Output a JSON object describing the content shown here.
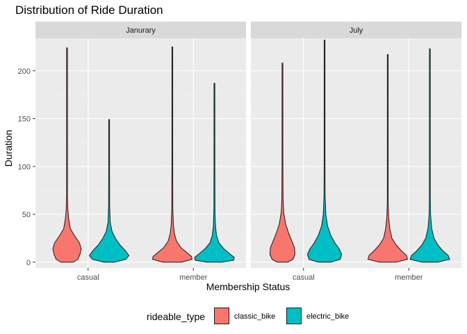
{
  "chart_data": {
    "type": "violin",
    "title": "Distribution of Ride Duration",
    "xlabel": "Membership Status",
    "ylabel": "Duration",
    "ylim": [
      -6,
      234
    ],
    "yticks": [
      0,
      50,
      100,
      150,
      200
    ],
    "ytick_labels": [
      "0",
      "50",
      "100",
      "150",
      "200"
    ],
    "categories": [
      "casual",
      "member"
    ],
    "grid": true,
    "legend": {
      "title": "rideable_type",
      "position": "bottom",
      "entries": [
        {
          "name": "classic_bike",
          "color": "#F8766D"
        },
        {
          "name": "electric_bike",
          "color": "#00BFC4"
        }
      ]
    },
    "facets": [
      {
        "label": "Janurary",
        "violins": [
          {
            "category": "casual",
            "series": "classic_bike",
            "min": 0,
            "max": 224,
            "profile": [
              [
                0,
                0.3
              ],
              [
                3,
                0.52
              ],
              [
                8,
                0.62
              ],
              [
                14,
                0.68
              ],
              [
                20,
                0.6
              ],
              [
                28,
                0.35
              ],
              [
                35,
                0.16
              ],
              [
                45,
                0.08
              ],
              [
                55,
                0.04
              ],
              [
                70,
                0.02
              ],
              [
                100,
                0.013
              ],
              [
                224,
                0.008
              ]
            ]
          },
          {
            "category": "casual",
            "series": "electric_bike",
            "min": 0,
            "max": 149,
            "profile": [
              [
                0,
                0.25
              ],
              [
                3,
                0.8
              ],
              [
                7,
                0.95
              ],
              [
                12,
                0.78
              ],
              [
                18,
                0.52
              ],
              [
                25,
                0.3
              ],
              [
                32,
                0.14
              ],
              [
                42,
                0.05
              ],
              [
                60,
                0.025
              ],
              [
                100,
                0.012
              ],
              [
                149,
                0.008
              ]
            ]
          },
          {
            "category": "member",
            "series": "classic_bike",
            "min": 0,
            "max": 225,
            "profile": [
              [
                0,
                0.45
              ],
              [
                3,
                0.95
              ],
              [
                6,
                0.92
              ],
              [
                10,
                0.7
              ],
              [
                15,
                0.42
              ],
              [
                22,
                0.2
              ],
              [
                30,
                0.1
              ],
              [
                40,
                0.05
              ],
              [
                55,
                0.025
              ],
              [
                100,
                0.012
              ],
              [
                225,
                0.008
              ]
            ]
          },
          {
            "category": "member",
            "series": "electric_bike",
            "min": 0,
            "max": 187,
            "profile": [
              [
                0,
                0.35
              ],
              [
                2,
                0.92
              ],
              [
                5,
                0.95
              ],
              [
                9,
                0.72
              ],
              [
                14,
                0.45
              ],
              [
                20,
                0.22
              ],
              [
                28,
                0.1
              ],
              [
                38,
                0.05
              ],
              [
                55,
                0.025
              ],
              [
                100,
                0.012
              ],
              [
                187,
                0.008
              ]
            ]
          }
        ]
      },
      {
        "label": "July",
        "violins": [
          {
            "category": "casual",
            "series": "classic_bike",
            "min": 0,
            "max": 208,
            "profile": [
              [
                0,
                0.25
              ],
              [
                3,
                0.5
              ],
              [
                8,
                0.6
              ],
              [
                15,
                0.58
              ],
              [
                22,
                0.45
              ],
              [
                30,
                0.3
              ],
              [
                40,
                0.15
              ],
              [
                52,
                0.06
              ],
              [
                65,
                0.03
              ],
              [
                100,
                0.013
              ],
              [
                208,
                0.008
              ]
            ]
          },
          {
            "category": "casual",
            "series": "electric_bike",
            "min": 0,
            "max": 232,
            "profile": [
              [
                0,
                0.3
              ],
              [
                3,
                0.75
              ],
              [
                8,
                0.82
              ],
              [
                14,
                0.7
              ],
              [
                20,
                0.5
              ],
              [
                28,
                0.3
              ],
              [
                38,
                0.14
              ],
              [
                50,
                0.06
              ],
              [
                70,
                0.025
              ],
              [
                100,
                0.013
              ],
              [
                232,
                0.008
              ]
            ]
          },
          {
            "category": "member",
            "series": "classic_bike",
            "min": 0,
            "max": 217,
            "profile": [
              [
                0,
                0.4
              ],
              [
                3,
                0.95
              ],
              [
                7,
                0.9
              ],
              [
                12,
                0.65
              ],
              [
                18,
                0.4
              ],
              [
                25,
                0.2
              ],
              [
                35,
                0.1
              ],
              [
                48,
                0.04
              ],
              [
                65,
                0.02
              ],
              [
                100,
                0.012
              ],
              [
                217,
                0.008
              ]
            ]
          },
          {
            "category": "member",
            "series": "electric_bike",
            "min": 0,
            "max": 223,
            "profile": [
              [
                0,
                0.38
              ],
              [
                3,
                0.95
              ],
              [
                7,
                0.88
              ],
              [
                12,
                0.62
              ],
              [
                18,
                0.38
              ],
              [
                25,
                0.2
              ],
              [
                35,
                0.09
              ],
              [
                48,
                0.04
              ],
              [
                65,
                0.02
              ],
              [
                100,
                0.012
              ],
              [
                223,
                0.008
              ]
            ]
          }
        ]
      }
    ]
  }
}
